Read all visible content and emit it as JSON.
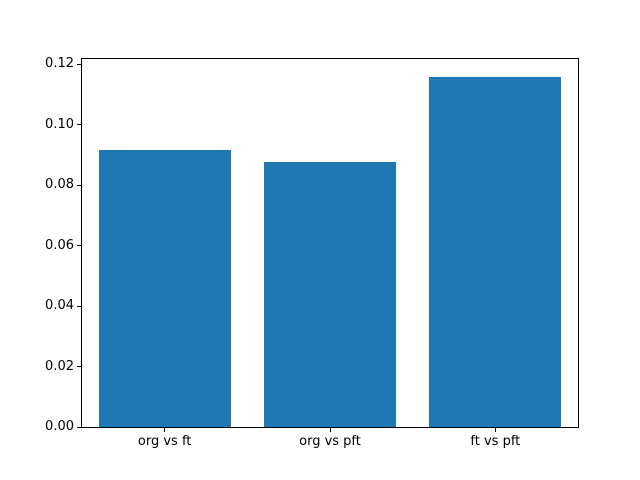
{
  "chart_data": {
    "type": "bar",
    "categories": [
      "org vs ft",
      "org vs pft",
      "ft vs pft"
    ],
    "values": [
      0.0916,
      0.0876,
      0.116
    ],
    "ytick_labels": [
      "0.00",
      "0.02",
      "0.04",
      "0.06",
      "0.08",
      "0.10",
      "0.12"
    ],
    "yticks": [
      0.0,
      0.02,
      0.04,
      0.06,
      0.08,
      0.1,
      0.12
    ],
    "ylim": [
      0,
      0.1218
    ],
    "bar_color": "#1f77b4",
    "axis_color": "#000000",
    "grid": false,
    "legend": "none",
    "title": "",
    "xlabel": "",
    "ylabel": ""
  }
}
